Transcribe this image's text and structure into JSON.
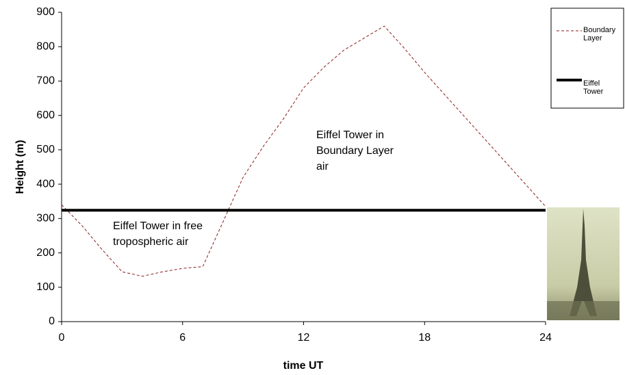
{
  "chart_data": {
    "type": "line",
    "x": [
      0,
      1,
      2,
      3,
      4,
      5,
      6,
      7,
      8,
      9,
      10,
      11,
      12,
      13,
      14,
      15,
      16,
      17,
      18,
      19,
      20,
      21,
      22,
      23,
      24
    ],
    "series": [
      {
        "name": "Boundary Layer",
        "color": "#8b1a1a",
        "dash": true,
        "values": [
          340,
          280,
          210,
          145,
          132,
          145,
          155,
          160,
          290,
          420,
          510,
          590,
          680,
          740,
          790,
          825,
          860,
          795,
          725,
          660,
          595,
          530,
          465,
          400,
          335
        ]
      },
      {
        "name": "Eiffel Tower",
        "color": "#000000",
        "dash": false,
        "values": [
          324,
          324,
          324,
          324,
          324,
          324,
          324,
          324,
          324,
          324,
          324,
          324,
          324,
          324,
          324,
          324,
          324,
          324,
          324,
          324,
          324,
          324,
          324,
          324,
          324
        ]
      }
    ],
    "xlabel": "time UT",
    "ylabel": "Height (m)",
    "xlim": [
      0,
      24
    ],
    "xticks": [
      0,
      6,
      12,
      18,
      24
    ],
    "ylim": [
      0,
      900
    ],
    "yticks": [
      0,
      100,
      200,
      300,
      400,
      500,
      600,
      700,
      800,
      900
    ],
    "annotations": [
      {
        "lines": [
          "Eiffel Tower in free",
          "tropospheric air"
        ]
      },
      {
        "lines": [
          "Eiffel Tower in",
          "Boundary Layer",
          "air"
        ]
      }
    ]
  }
}
